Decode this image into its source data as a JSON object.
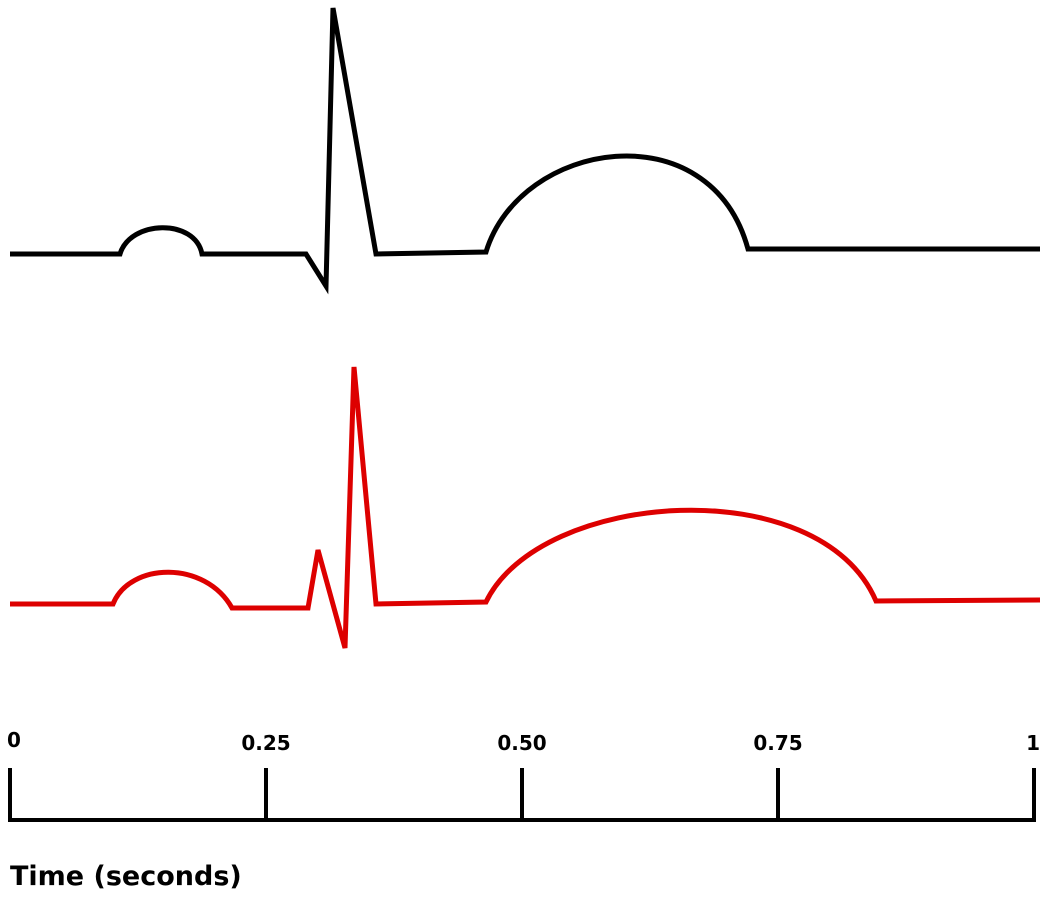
{
  "axis": {
    "title": "Time (seconds)",
    "ticks": [
      {
        "value": 0,
        "label": "0"
      },
      {
        "value": 0.25,
        "label": "0.25"
      },
      {
        "value": 0.5,
        "label": "0.50"
      },
      {
        "value": 0.75,
        "label": "0.75"
      },
      {
        "value": 1,
        "label": "1"
      }
    ]
  },
  "traces": [
    {
      "id": "top",
      "color": "#000000"
    },
    {
      "id": "bottom",
      "color": "#dd0000"
    }
  ]
}
